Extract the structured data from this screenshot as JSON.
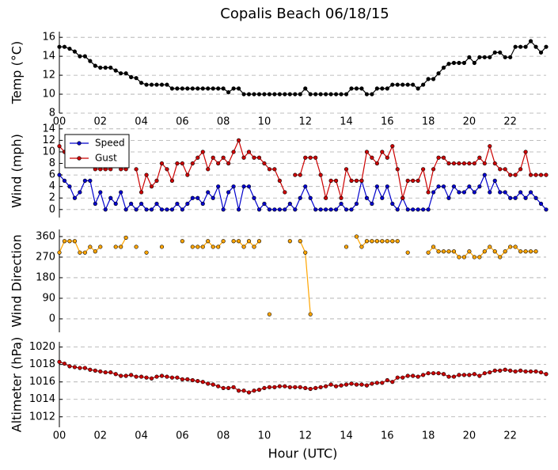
{
  "title": "Copalis Beach 06/18/15",
  "chart_data": [
    {
      "type": "line",
      "ylabel": "Temp (°C)",
      "color": "#000000",
      "grid": true,
      "x": [
        0,
        0.25,
        0.5,
        0.75,
        1,
        1.25,
        1.5,
        1.75,
        2,
        2.25,
        2.5,
        2.75,
        3,
        3.25,
        3.5,
        3.75,
        4,
        4.25,
        4.5,
        4.75,
        5,
        5.25,
        5.5,
        5.75,
        6,
        6.25,
        6.5,
        6.75,
        7,
        7.25,
        7.5,
        7.75,
        8,
        8.25,
        8.5,
        8.75,
        9,
        9.25,
        9.5,
        9.75,
        10,
        10.25,
        10.5,
        10.75,
        11,
        11.25,
        11.5,
        11.75,
        12,
        12.25,
        12.5,
        12.75,
        13,
        13.25,
        13.5,
        13.75,
        14,
        14.25,
        14.5,
        14.75,
        15,
        15.25,
        15.5,
        15.75,
        16,
        16.25,
        16.5,
        16.75,
        17,
        17.25,
        17.5,
        17.75,
        18,
        18.25,
        18.5,
        18.75,
        19,
        19.25,
        19.5,
        19.75,
        20,
        20.25,
        20.5,
        20.75,
        21,
        21.25,
        21.5,
        21.75,
        22,
        22.25,
        22.5,
        22.75,
        23,
        23.25,
        23.5,
        23.75
      ],
      "values": [
        15,
        15,
        14.8,
        14.5,
        14,
        14,
        13.5,
        13,
        12.8,
        12.8,
        12.8,
        12.5,
        12.2,
        12.2,
        11.8,
        11.7,
        11.2,
        11,
        11,
        11,
        11,
        11,
        10.6,
        10.6,
        10.6,
        10.6,
        10.6,
        10.6,
        10.6,
        10.6,
        10.6,
        10.6,
        10.6,
        10.2,
        10.6,
        10.6,
        10,
        10,
        10,
        10,
        10,
        10,
        10,
        10,
        10,
        10,
        10,
        10,
        10.6,
        10,
        10,
        10,
        10,
        10,
        10,
        10,
        10,
        10.6,
        10.6,
        10.6,
        10,
        10,
        10.6,
        10.6,
        10.6,
        11,
        11,
        11,
        11,
        11,
        10.6,
        11,
        11.6,
        11.6,
        12.2,
        12.8,
        13.2,
        13.3,
        13.3,
        13.3,
        13.9,
        13.3,
        13.9,
        13.9,
        13.9,
        14.4,
        14.4,
        13.9,
        13.9,
        15,
        15,
        15,
        15.6,
        15,
        14.4,
        15
      ],
      "xlim": [
        0,
        23.75
      ],
      "ylim": [
        8,
        16.6
      ],
      "yticks": [
        8,
        10,
        12,
        14,
        16
      ],
      "xticks": [
        {
          "value": 0,
          "label": "00"
        },
        {
          "value": 2,
          "label": "02"
        },
        {
          "value": 4,
          "label": "04"
        },
        {
          "value": 6,
          "label": "06"
        },
        {
          "value": 8,
          "label": "08"
        },
        {
          "value": 10,
          "label": "10"
        },
        {
          "value": 12,
          "label": "12"
        },
        {
          "value": 14,
          "label": "14"
        },
        {
          "value": 16,
          "label": "16"
        },
        {
          "value": 18,
          "label": "18"
        },
        {
          "value": 20,
          "label": "20"
        },
        {
          "value": 22,
          "label": "22"
        }
      ]
    },
    {
      "type": "line",
      "ylabel": "Wind (mph)",
      "grid": true,
      "legend": "upper left",
      "x": [
        0,
        0.25,
        0.5,
        0.75,
        1,
        1.25,
        1.5,
        1.75,
        2,
        2.25,
        2.5,
        2.75,
        3,
        3.25,
        3.5,
        3.75,
        4,
        4.25,
        4.5,
        4.75,
        5,
        5.25,
        5.5,
        5.75,
        6,
        6.25,
        6.5,
        6.75,
        7,
        7.25,
        7.5,
        7.75,
        8,
        8.25,
        8.5,
        8.75,
        9,
        9.25,
        9.5,
        9.75,
        10,
        10.25,
        10.5,
        10.75,
        11,
        11.25,
        11.5,
        11.75,
        12,
        12.25,
        12.5,
        12.75,
        13,
        13.25,
        13.5,
        13.75,
        14,
        14.25,
        14.5,
        14.75,
        15,
        15.25,
        15.5,
        15.75,
        16,
        16.25,
        16.5,
        16.75,
        17,
        17.25,
        17.5,
        17.75,
        18,
        18.25,
        18.5,
        18.75,
        19,
        19.25,
        19.5,
        19.75,
        20,
        20.25,
        20.5,
        20.75,
        21,
        21.25,
        21.5,
        21.75,
        22,
        22.25,
        22.5,
        22.75,
        23,
        23.25,
        23.5,
        23.75
      ],
      "series": [
        {
          "name": "Speed",
          "color": "#0000cc",
          "values": [
            6,
            5,
            4,
            2,
            3,
            5,
            5,
            1,
            3,
            0,
            2,
            1,
            3,
            0,
            1,
            0,
            1,
            0,
            0,
            1,
            0,
            0,
            0,
            1,
            0,
            1,
            2,
            2,
            1,
            3,
            2,
            4,
            0,
            3,
            4,
            0,
            4,
            4,
            2,
            0,
            1,
            0,
            0,
            0,
            0,
            1,
            0,
            2,
            4,
            2,
            0,
            0,
            0,
            0,
            0,
            1,
            0,
            0,
            1,
            5,
            2,
            1,
            4,
            2,
            4,
            1,
            0,
            2,
            0,
            0,
            0,
            0,
            0,
            3,
            4,
            4,
            2,
            4,
            3,
            3,
            4,
            3,
            4,
            6,
            3,
            5,
            3,
            3,
            2,
            2,
            3,
            2,
            3,
            2,
            1,
            0
          ]
        },
        {
          "name": "Gust",
          "color": "#cc0000",
          "values": [
            11,
            10,
            9,
            9,
            8,
            8,
            8,
            7,
            7,
            7,
            7,
            null,
            7,
            7,
            null,
            7,
            3,
            6,
            4,
            5,
            8,
            7,
            5,
            8,
            8,
            6,
            8,
            9,
            10,
            7,
            9,
            8,
            9,
            8,
            10,
            12,
            9,
            10,
            9,
            9,
            8,
            7,
            7,
            5,
            3,
            null,
            6,
            6,
            9,
            9,
            9,
            6,
            2,
            5,
            5,
            2,
            7,
            5,
            5,
            5,
            10,
            9,
            8,
            10,
            9,
            11,
            7,
            2,
            5,
            5,
            5,
            7,
            3,
            7,
            9,
            9,
            8,
            8,
            8,
            8,
            8,
            8,
            9,
            8,
            11,
            8,
            7,
            7,
            6,
            6,
            7,
            10,
            6,
            6,
            6,
            6
          ]
        }
      ],
      "xlim": [
        0,
        23.75
      ],
      "ylim": [
        -1.4,
        14.8
      ],
      "yticks": [
        0,
        2,
        4,
        6,
        8,
        10,
        12,
        14
      ]
    },
    {
      "type": "line",
      "ylabel": "Wind Direction",
      "color": "#ffa500",
      "grid": true,
      "x": [
        0,
        0.25,
        0.5,
        0.75,
        1,
        1.25,
        1.5,
        1.75,
        2,
        2.25,
        2.5,
        2.75,
        3,
        3.25,
        3.5,
        3.75,
        4,
        4.25,
        4.5,
        4.75,
        5,
        5.25,
        5.5,
        5.75,
        6,
        6.25,
        6.5,
        6.75,
        7,
        7.25,
        7.5,
        7.75,
        8,
        8.25,
        8.5,
        8.75,
        9,
        9.25,
        9.5,
        9.75,
        10,
        10.25,
        10.5,
        10.75,
        11,
        11.25,
        11.5,
        11.75,
        12,
        12.25,
        12.5,
        12.75,
        13,
        13.25,
        13.5,
        13.75,
        14,
        14.25,
        14.5,
        14.75,
        15,
        15.25,
        15.5,
        15.75,
        16,
        16.25,
        16.5,
        16.75,
        17,
        17.25,
        17.5,
        17.75,
        18,
        18.25,
        18.5,
        18.75,
        19,
        19.25,
        19.5,
        19.75,
        20,
        20.25,
        20.5,
        20.75,
        21,
        21.25,
        21.5,
        21.75,
        22,
        22.25,
        22.5,
        22.75,
        23,
        23.25,
        23.5,
        23.75
      ],
      "values": [
        290,
        340,
        340,
        340,
        290,
        290,
        315,
        295,
        315,
        null,
        null,
        315,
        315,
        355,
        null,
        315,
        null,
        290,
        null,
        null,
        315,
        null,
        null,
        null,
        340,
        null,
        315,
        315,
        315,
        340,
        315,
        315,
        340,
        null,
        340,
        340,
        315,
        340,
        315,
        340,
        null,
        20,
        null,
        null,
        null,
        340,
        null,
        340,
        290,
        20,
        null,
        null,
        null,
        null,
        null,
        null,
        315,
        null,
        360,
        315,
        340,
        340,
        340,
        340,
        340,
        340,
        340,
        null,
        290,
        null,
        null,
        null,
        290,
        315,
        295,
        295,
        295,
        295,
        270,
        270,
        295,
        270,
        270,
        295,
        315,
        295,
        270,
        295,
        315,
        315,
        295,
        295,
        295,
        295,
        null,
        null
      ],
      "xlim": [
        0,
        23.75
      ],
      "ylim": [
        -59,
        391
      ],
      "yticks": [
        0,
        90,
        180,
        270,
        360
      ]
    },
    {
      "type": "line",
      "ylabel": "Altimeter (hPa)",
      "xlabel": "Hour (UTC)",
      "color": "#cc0000",
      "grid": true,
      "x": [
        0,
        0.25,
        0.5,
        0.75,
        1,
        1.25,
        1.5,
        1.75,
        2,
        2.25,
        2.5,
        2.75,
        3,
        3.25,
        3.5,
        3.75,
        4,
        4.25,
        4.5,
        4.75,
        5,
        5.25,
        5.5,
        5.75,
        6,
        6.25,
        6.5,
        6.75,
        7,
        7.25,
        7.5,
        7.75,
        8,
        8.25,
        8.5,
        8.75,
        9,
        9.25,
        9.5,
        9.75,
        10,
        10.25,
        10.5,
        10.75,
        11,
        11.25,
        11.5,
        11.75,
        12,
        12.25,
        12.5,
        12.75,
        13,
        13.25,
        13.5,
        13.75,
        14,
        14.25,
        14.5,
        14.75,
        15,
        15.25,
        15.5,
        15.75,
        16,
        16.25,
        16.5,
        16.75,
        17,
        17.25,
        17.5,
        17.75,
        18,
        18.25,
        18.5,
        18.75,
        19,
        19.25,
        19.5,
        19.75,
        20,
        20.25,
        20.5,
        20.75,
        21,
        21.25,
        21.5,
        21.75,
        22,
        22.25,
        22.5,
        22.75,
        23,
        23.25,
        23.5,
        23.75
      ],
      "values": [
        1018.3,
        1018.1,
        1017.8,
        1017.7,
        1017.6,
        1017.6,
        1017.4,
        1017.3,
        1017.2,
        1017.1,
        1017.1,
        1016.9,
        1016.7,
        1016.7,
        1016.8,
        1016.6,
        1016.6,
        1016.5,
        1016.4,
        1016.6,
        1016.7,
        1016.6,
        1016.5,
        1016.5,
        1016.3,
        1016.3,
        1016.2,
        1016.1,
        1016.0,
        1015.8,
        1015.7,
        1015.5,
        1015.3,
        1015.3,
        1015.4,
        1015.0,
        1015.0,
        1014.8,
        1015.0,
        1015.1,
        1015.3,
        1015.4,
        1015.4,
        1015.5,
        1015.5,
        1015.4,
        1015.4,
        1015.4,
        1015.3,
        1015.2,
        1015.3,
        1015.4,
        1015.5,
        1015.7,
        1015.5,
        1015.6,
        1015.7,
        1015.8,
        1015.7,
        1015.7,
        1015.6,
        1015.8,
        1015.9,
        1015.9,
        1016.2,
        1016.0,
        1016.5,
        1016.5,
        1016.7,
        1016.7,
        1016.6,
        1016.8,
        1017.0,
        1017.0,
        1017.0,
        1016.9,
        1016.6,
        1016.6,
        1016.8,
        1016.8,
        1016.8,
        1016.9,
        1016.7,
        1017.0,
        1017.1,
        1017.3,
        1017.3,
        1017.4,
        1017.3,
        1017.2,
        1017.3,
        1017.2,
        1017.2,
        1017.2,
        1017.1,
        1016.9
      ],
      "xlim": [
        0,
        23.75
      ],
      "ylim": [
        1010.8,
        1020.6
      ],
      "yticks": [
        1012,
        1014,
        1016,
        1018,
        1020
      ],
      "xticks": [
        {
          "value": 0,
          "label": "00"
        },
        {
          "value": 2,
          "label": "02"
        },
        {
          "value": 4,
          "label": "04"
        },
        {
          "value": 6,
          "label": "06"
        },
        {
          "value": 8,
          "label": "08"
        },
        {
          "value": 10,
          "label": "10"
        },
        {
          "value": 12,
          "label": "12"
        },
        {
          "value": 14,
          "label": "14"
        },
        {
          "value": 16,
          "label": "16"
        },
        {
          "value": 18,
          "label": "18"
        },
        {
          "value": 20,
          "label": "20"
        },
        {
          "value": 22,
          "label": "22"
        }
      ]
    }
  ]
}
